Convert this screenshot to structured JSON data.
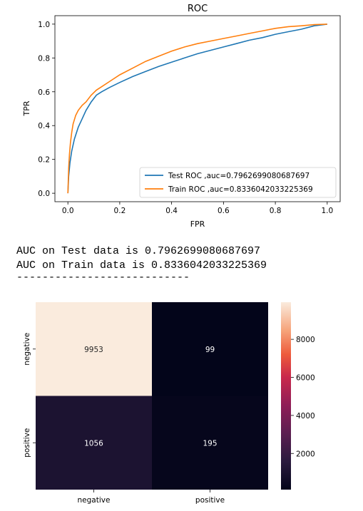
{
  "output_lines": [
    "AUC on Test data is 0.7962699080687697",
    "AUC on Train data is 0.8336042033225369",
    "---------------------------"
  ],
  "chart_data": [
    {
      "type": "line",
      "title": "ROC",
      "xlabel": "FPR",
      "ylabel": "TPR",
      "xlim": [
        -0.05,
        1.05
      ],
      "ylim": [
        -0.05,
        1.05
      ],
      "xticks": [
        0.0,
        0.2,
        0.4,
        0.6,
        0.8,
        1.0
      ],
      "yticks": [
        0.0,
        0.2,
        0.4,
        0.6,
        0.8,
        1.0
      ],
      "tick_labels_x": [
        "0.0",
        "0.2",
        "0.4",
        "0.6",
        "0.8",
        "1.0"
      ],
      "tick_labels_y": [
        "0.0",
        "0.2",
        "0.4",
        "0.6",
        "0.8",
        "1.0"
      ],
      "grid": false,
      "legend_position": "lower-right",
      "series": [
        {
          "name": "Test ROC ,auc=0.7962699080687697",
          "color": "#1f77b4",
          "x": [
            0,
            0.003,
            0.008,
            0.015,
            0.025,
            0.04,
            0.055,
            0.07,
            0.09,
            0.11,
            0.13,
            0.16,
            0.2,
            0.25,
            0.3,
            0.35,
            0.4,
            0.45,
            0.5,
            0.55,
            0.6,
            0.65,
            0.7,
            0.75,
            0.8,
            0.85,
            0.9,
            0.95,
            1.0
          ],
          "y": [
            0,
            0.1,
            0.18,
            0.25,
            0.32,
            0.39,
            0.44,
            0.49,
            0.54,
            0.58,
            0.6,
            0.625,
            0.655,
            0.69,
            0.72,
            0.75,
            0.775,
            0.8,
            0.825,
            0.845,
            0.865,
            0.885,
            0.905,
            0.92,
            0.94,
            0.955,
            0.97,
            0.99,
            1.0
          ]
        },
        {
          "name": "Train ROC ,auc=0.8336042033225369",
          "color": "#ff7f0e",
          "x": [
            0,
            0.003,
            0.006,
            0.01,
            0.015,
            0.02,
            0.03,
            0.04,
            0.055,
            0.07,
            0.09,
            0.11,
            0.13,
            0.16,
            0.2,
            0.25,
            0.3,
            0.35,
            0.4,
            0.45,
            0.5,
            0.55,
            0.6,
            0.65,
            0.7,
            0.75,
            0.8,
            0.85,
            0.9,
            0.95,
            1.0
          ],
          "y": [
            0,
            0.15,
            0.23,
            0.3,
            0.36,
            0.41,
            0.46,
            0.49,
            0.52,
            0.54,
            0.58,
            0.61,
            0.63,
            0.66,
            0.7,
            0.74,
            0.78,
            0.81,
            0.84,
            0.865,
            0.885,
            0.9,
            0.915,
            0.93,
            0.945,
            0.96,
            0.975,
            0.985,
            0.99,
            0.997,
            1.0
          ]
        }
      ]
    },
    {
      "type": "heatmap",
      "row_labels": [
        "negative",
        "positive"
      ],
      "col_labels": [
        "negative",
        "positive"
      ],
      "values": [
        [
          9953,
          99
        ],
        [
          1056,
          195
        ]
      ],
      "colorbar": {
        "min": 99,
        "max": 9953,
        "ticks": [
          2000,
          4000,
          6000,
          8000
        ],
        "tick_labels": [
          "2000",
          "4000",
          "6000",
          "8000"
        ],
        "colormap": "rocket"
      }
    }
  ]
}
